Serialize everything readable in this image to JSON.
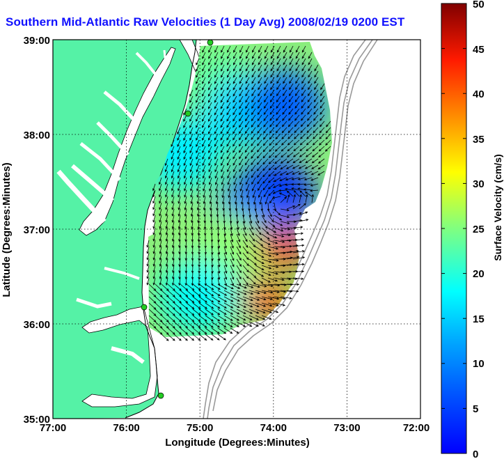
{
  "title": "Southern Mid-Atlantic Raw Velocities (1 Day Avg) 2008/02/19 0200 EST",
  "xlabel": "Longitude (Degrees:Minutes)",
  "ylabel": "Latitude (Degrees:Minutes)",
  "colorbar_label": "Surface Velocity (cm/s)",
  "x_ticks": [
    "77:00",
    "76:00",
    "75:00",
    "74:00",
    "73:00",
    "72:00"
  ],
  "y_ticks": [
    "39:00",
    "38:00",
    "37:00",
    "36:00",
    "35:00"
  ],
  "colorbar_ticks": [
    "50",
    "45",
    "40",
    "35",
    "30",
    "25",
    "20",
    "15",
    "10",
    "5",
    "0"
  ],
  "colors": {
    "land": "#55f2a6",
    "title": "#1010ff",
    "sites": "#22cc22",
    "arrows": "#000000",
    "bathymetry": "#999999",
    "grid": "#000000"
  },
  "chart_data": {
    "type": "heatmap",
    "title": "Southern Mid-Atlantic Raw Velocities (1 Day Avg) 2008/02/19 0200 EST",
    "xlabel": "Longitude (Degrees:Minutes)",
    "ylabel": "Latitude (Degrees:Minutes)",
    "xlim": [
      -77,
      -72
    ],
    "ylim": [
      35,
      39
    ],
    "colorbar": {
      "label": "Surface Velocity (cm/s)",
      "range": [
        0,
        50
      ],
      "colormap": "jet"
    },
    "grid": true,
    "hf_radar_sites": [
      {
        "lon": -74.85,
        "lat": 38.95
      },
      {
        "lon": -75.15,
        "lat": 38.2
      },
      {
        "lon": -75.75,
        "lat": 36.15
      },
      {
        "lon": -75.53,
        "lat": 35.24
      }
    ],
    "speed_regions": [
      {
        "lon": -75.25,
        "lat": 37.8,
        "speed": 18
      },
      {
        "lon": -74.8,
        "lat": 38.55,
        "speed": 24
      },
      {
        "lon": -74.4,
        "lat": 38.25,
        "speed": 17
      },
      {
        "lon": -73.85,
        "lat": 38.3,
        "speed": 11
      },
      {
        "lon": -74.0,
        "lat": 37.35,
        "speed": 7
      },
      {
        "lon": -74.3,
        "lat": 37.1,
        "speed": 11
      },
      {
        "lon": -74.6,
        "lat": 36.8,
        "speed": 26
      },
      {
        "lon": -73.9,
        "lat": 36.8,
        "speed": 44
      },
      {
        "lon": -74.1,
        "lat": 36.25,
        "speed": 40
      },
      {
        "lon": -75.0,
        "lat": 36.3,
        "speed": 19
      }
    ]
  }
}
